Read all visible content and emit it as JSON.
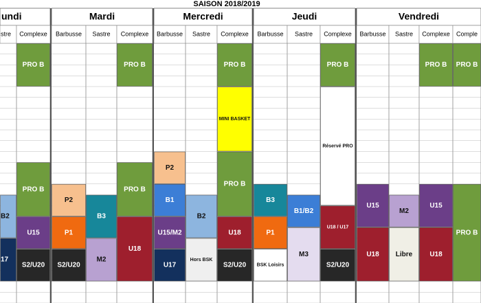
{
  "title": "SAISON  2018/2019",
  "days": [
    {
      "name": "undi",
      "columns": [
        {
          "venue": "stre",
          "blocks": [
            "B2",
            "17"
          ]
        },
        {
          "venue": "Complexe",
          "blocks": [
            "PRO B",
            "PRO B",
            "U15",
            "S2/U20"
          ]
        }
      ]
    },
    {
      "name": "Mardi",
      "columns": [
        {
          "venue": "Barbusse",
          "blocks": [
            "P2",
            "P1",
            "S2/U20"
          ]
        },
        {
          "venue": "Sastre",
          "blocks": [
            "B3",
            "M2"
          ]
        },
        {
          "venue": "Complexe",
          "blocks": [
            "PRO B",
            "PRO B",
            "U18"
          ]
        }
      ]
    },
    {
      "name": "Mercredi",
      "columns": [
        {
          "venue": "Barbusse",
          "blocks": [
            "P2",
            "B1",
            "U15/M2",
            "U17"
          ]
        },
        {
          "venue": "Sastre",
          "blocks": [
            "B2",
            "Hors BSK"
          ]
        },
        {
          "venue": "Complexe",
          "blocks": [
            "PRO B",
            "MINI BASKET",
            "PRO B",
            "U18",
            "S2/U20"
          ]
        }
      ]
    },
    {
      "name": "Jeudi",
      "columns": [
        {
          "venue": "Barbusse",
          "blocks": [
            "B3",
            "P1",
            "BSK Loisirs"
          ]
        },
        {
          "venue": "Sastre",
          "blocks": [
            "B1/B2",
            "M3"
          ]
        },
        {
          "venue": "Complexe",
          "blocks": [
            "PRO B",
            "Réservé PRO",
            "U18 / U17",
            "S2/U20"
          ]
        }
      ]
    },
    {
      "name": "Vendredi",
      "columns": [
        {
          "venue": "Barbusse",
          "blocks": [
            "U15",
            "U18"
          ]
        },
        {
          "venue": "Sastre",
          "blocks": [
            "M2",
            "Libre"
          ]
        },
        {
          "venue": "Complexe",
          "blocks": [
            "PRO B",
            "U15",
            "U18"
          ]
        },
        {
          "venue": "Comple",
          "blocks": [
            "PRO B",
            "PRO B"
          ]
        }
      ]
    }
  ]
}
